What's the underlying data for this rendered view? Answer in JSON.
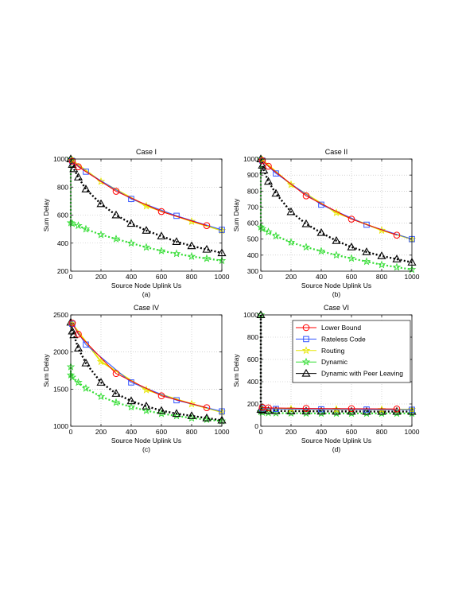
{
  "chart_data": [
    {
      "type": "line",
      "title": "Case I",
      "caption": "(a)",
      "xlabel": "Source Node Uplink Us",
      "ylabel": "Sum Delay",
      "xlim": [
        0,
        1000
      ],
      "ylim": [
        200,
        1000
      ],
      "xticks": [
        0,
        200,
        400,
        600,
        800,
        1000
      ],
      "yticks": [
        200,
        400,
        600,
        800,
        1000
      ],
      "grid": true,
      "series": [
        {
          "name": "Lower Bound",
          "x": [
            10,
            50,
            300,
            600,
            900
          ],
          "y": [
            985,
            945,
            770,
            625,
            525
          ]
        },
        {
          "name": "Rateless Code",
          "x": [
            10,
            100,
            400,
            700,
            1000
          ],
          "y": [
            985,
            910,
            715,
            595,
            495
          ]
        },
        {
          "name": "Routing",
          "x": [
            10,
            200,
            500,
            800,
            1000
          ],
          "y": [
            990,
            840,
            665,
            555,
            490
          ]
        },
        {
          "name": "Dynamic",
          "x": [
            0,
            0,
            10,
            50,
            100,
            200,
            300,
            400,
            500,
            600,
            700,
            800,
            900,
            1000
          ],
          "y": [
            1000,
            545,
            540,
            525,
            500,
            460,
            430,
            400,
            370,
            345,
            325,
            305,
            290,
            275
          ]
        },
        {
          "name": "Dynamic with Peer Leaving",
          "x": [
            0,
            10,
            20,
            50,
            100,
            200,
            300,
            400,
            500,
            600,
            700,
            800,
            900,
            1000
          ],
          "y": [
            1000,
            960,
            930,
            870,
            785,
            680,
            600,
            540,
            490,
            450,
            410,
            380,
            355,
            330
          ]
        }
      ]
    },
    {
      "type": "line",
      "title": "Case II",
      "caption": "(b)",
      "xlabel": "Source Node Uplink Us",
      "ylabel": "Sum Delay",
      "xlim": [
        0,
        1000
      ],
      "ylim": [
        300,
        1000
      ],
      "xticks": [
        0,
        200,
        400,
        600,
        800,
        1000
      ],
      "yticks": [
        300,
        400,
        500,
        600,
        700,
        800,
        900,
        1000
      ],
      "grid": true,
      "series": [
        {
          "name": "Lower Bound",
          "x": [
            10,
            50,
            300,
            600,
            900
          ],
          "y": [
            990,
            955,
            770,
            625,
            525
          ]
        },
        {
          "name": "Rateless Code",
          "x": [
            10,
            100,
            400,
            700,
            1000
          ],
          "y": [
            990,
            910,
            715,
            590,
            500
          ]
        },
        {
          "name": "Routing",
          "x": [
            10,
            200,
            500,
            800,
            1000
          ],
          "y": [
            995,
            840,
            665,
            555,
            500
          ]
        },
        {
          "name": "Dynamic",
          "x": [
            0,
            0,
            10,
            50,
            100,
            200,
            300,
            400,
            500,
            600,
            700,
            800,
            900,
            1000
          ],
          "y": [
            1000,
            575,
            565,
            545,
            520,
            480,
            450,
            425,
            400,
            380,
            360,
            340,
            325,
            310
          ]
        },
        {
          "name": "Dynamic with Peer Leaving",
          "x": [
            0,
            10,
            20,
            50,
            100,
            200,
            300,
            400,
            500,
            600,
            700,
            800,
            900,
            1000
          ],
          "y": [
            1000,
            960,
            930,
            860,
            785,
            670,
            595,
            540,
            490,
            450,
            420,
            395,
            375,
            355
          ]
        }
      ]
    },
    {
      "type": "line",
      "title": "Case IV",
      "caption": "(c)",
      "xlabel": "Source Node Uplink Us",
      "ylabel": "Sum Delay",
      "xlim": [
        0,
        1000
      ],
      "ylim": [
        1000,
        2500
      ],
      "xticks": [
        0,
        200,
        400,
        600,
        800,
        1000
      ],
      "yticks": [
        1000,
        1500,
        2000,
        2500
      ],
      "grid": true,
      "series": [
        {
          "name": "Lower Bound",
          "x": [
            10,
            50,
            300,
            600,
            900
          ],
          "y": [
            2390,
            2240,
            1710,
            1410,
            1250
          ]
        },
        {
          "name": "Rateless Code",
          "x": [
            10,
            100,
            400,
            700,
            1000
          ],
          "y": [
            2380,
            2100,
            1590,
            1350,
            1200
          ]
        },
        {
          "name": "Routing",
          "x": [
            10,
            200,
            500,
            800,
            1000
          ],
          "y": [
            2380,
            1870,
            1490,
            1300,
            1190
          ]
        },
        {
          "name": "Dynamic",
          "x": [
            0,
            0,
            10,
            50,
            100,
            200,
            300,
            400,
            500,
            600,
            700,
            800,
            900,
            1000
          ],
          "y": [
            1800,
            1690,
            1660,
            1590,
            1510,
            1400,
            1320,
            1260,
            1210,
            1170,
            1140,
            1110,
            1090,
            1070
          ]
        },
        {
          "name": "Dynamic with Peer Leaving",
          "x": [
            0,
            10,
            20,
            50,
            100,
            200,
            300,
            400,
            500,
            600,
            700,
            800,
            900,
            1000
          ],
          "y": [
            2400,
            2280,
            2230,
            2050,
            1850,
            1590,
            1440,
            1340,
            1270,
            1210,
            1170,
            1140,
            1110,
            1080
          ]
        }
      ]
    },
    {
      "type": "line",
      "title": "Case VI",
      "caption": "(d)",
      "xlabel": "Source Node Uplink Us",
      "ylabel": "Sum Delay",
      "xlim": [
        0,
        1000
      ],
      "ylim": [
        0,
        1000
      ],
      "xticks": [
        0,
        200,
        400,
        600,
        800,
        1000
      ],
      "yticks": [
        0,
        200,
        400,
        600,
        800,
        1000
      ],
      "grid": true,
      "legend": "top-right",
      "series": [
        {
          "name": "Lower Bound",
          "x": [
            10,
            50,
            300,
            600,
            900
          ],
          "y": [
            170,
            165,
            160,
            158,
            155
          ]
        },
        {
          "name": "Rateless Code",
          "x": [
            10,
            100,
            400,
            700,
            1000
          ],
          "y": [
            160,
            155,
            152,
            150,
            148
          ]
        },
        {
          "name": "Routing",
          "x": [
            10,
            200,
            500,
            800,
            1000
          ],
          "y": [
            160,
            155,
            152,
            150,
            150
          ]
        },
        {
          "name": "Dynamic",
          "x": [
            0,
            0,
            10,
            50,
            100,
            200,
            300,
            400,
            500,
            600,
            700,
            800,
            900,
            1000
          ],
          "y": [
            1000,
            130,
            125,
            120,
            118,
            117,
            116,
            115,
            115,
            115,
            115,
            115,
            115,
            115
          ]
        },
        {
          "name": "Dynamic with Peer Leaving",
          "x": [
            0,
            0,
            10,
            50,
            100,
            200,
            300,
            400,
            500,
            600,
            700,
            800,
            900,
            1000
          ],
          "y": [
            1000,
            150,
            145,
            140,
            138,
            136,
            135,
            134,
            133,
            133,
            132,
            132,
            132,
            132
          ]
        }
      ]
    }
  ],
  "style": {
    "colors": {
      "Lower Bound": "#ff0000",
      "Rateless Code": "#3355ff",
      "Routing": "#e6e600",
      "Dynamic": "#33dd33",
      "Dynamic with Peer Leaving": "#000000"
    },
    "markers": {
      "Lower Bound": "circle",
      "Rateless Code": "square",
      "Routing": "star",
      "Dynamic": "star",
      "Dynamic with Peer Leaving": "triangle"
    }
  }
}
